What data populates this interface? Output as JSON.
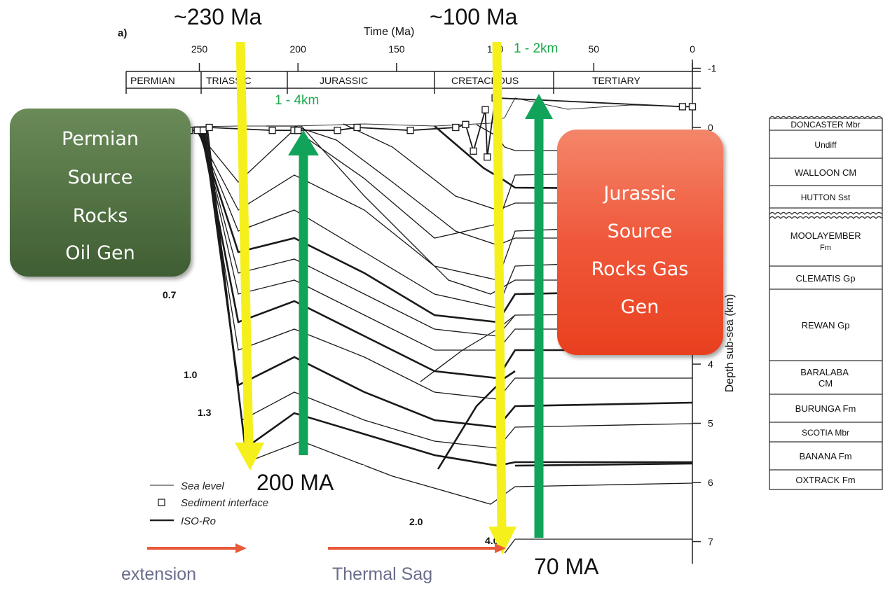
{
  "chart_data": {
    "type": "line",
    "panel_label": "a)",
    "x_axis": {
      "label": "Time (Ma)",
      "ticks": [
        "250",
        "200",
        "150",
        "100",
        "50",
        "0"
      ],
      "range": [
        260,
        0
      ],
      "reversed": true
    },
    "y_axis": {
      "label": "Depth sub-sea (km)",
      "ticks": [
        "-1",
        "0",
        "4",
        "5",
        "6",
        "7"
      ],
      "range": [
        -1,
        7.3
      ],
      "position": "right"
    },
    "periods": [
      "PERMIAN",
      "TRIASSIC",
      "JURASSIC",
      "CRETACEOUS",
      "TERTIARY"
    ],
    "iso_ro_labels": [
      "0.7",
      "1.0",
      "1.3",
      "2.0",
      "4.0"
    ],
    "legend": {
      "placement": "bottom-left",
      "items": [
        {
          "symbol": "thin-line",
          "label": "Sea level"
        },
        {
          "symbol": "square",
          "label": "Sediment interface"
        },
        {
          "symbol": "thick-line",
          "label": "ISO-Ro"
        }
      ]
    },
    "sediment_interface": {
      "x": [
        258,
        255,
        251,
        248,
        245,
        213,
        202,
        200,
        180,
        170,
        143,
        120,
        115,
        111,
        105,
        104,
        100,
        5,
        0
      ],
      "y": [
        0.1,
        0.05,
        0.05,
        0.05,
        0.0,
        0.05,
        0.05,
        0.05,
        0.05,
        0.0,
        0.05,
        0.0,
        -0.05,
        0.4,
        -0.3,
        0.5,
        -0.5,
        -0.35,
        -0.35
      ]
    }
  },
  "overlays": {
    "top_labels": [
      "~230 Ma",
      "~100 Ma"
    ],
    "uplift_labels": [
      "1 - 4km",
      "1 - 2km"
    ],
    "bottom_labels": [
      "200 MA",
      "70 MA"
    ],
    "phases": [
      "extension",
      "Thermal Sag"
    ],
    "boxes": [
      {
        "lines": [
          "Permian",
          "Source",
          "Rocks",
          "Oil Gen"
        ],
        "color": "#4d6d3f"
      },
      {
        "lines": [
          "Jurassic",
          "Source",
          "Rocks Gas",
          "Gen"
        ],
        "color": "#f05632"
      }
    ],
    "colors": {
      "yellow_arrow": "#f5f01c",
      "green_arrow": "#12a35a",
      "orange_arrow": "#e85a3a",
      "green_text": "#1aa84a",
      "phase_text": "#6a6d8c"
    }
  },
  "stratigraphy": {
    "units": [
      "DONCASTER Mbr",
      "Undiff",
      "WALLOON CM",
      "HUTTON Sst",
      "MOOLAYEMBER Fm",
      "CLEMATIS Gp",
      "REWAN Gp",
      "BARALABA CM",
      "BURUNGA Fm",
      "SCOTIA Mbr",
      "BANANA Fm",
      "OXTRACK Fm"
    ]
  }
}
